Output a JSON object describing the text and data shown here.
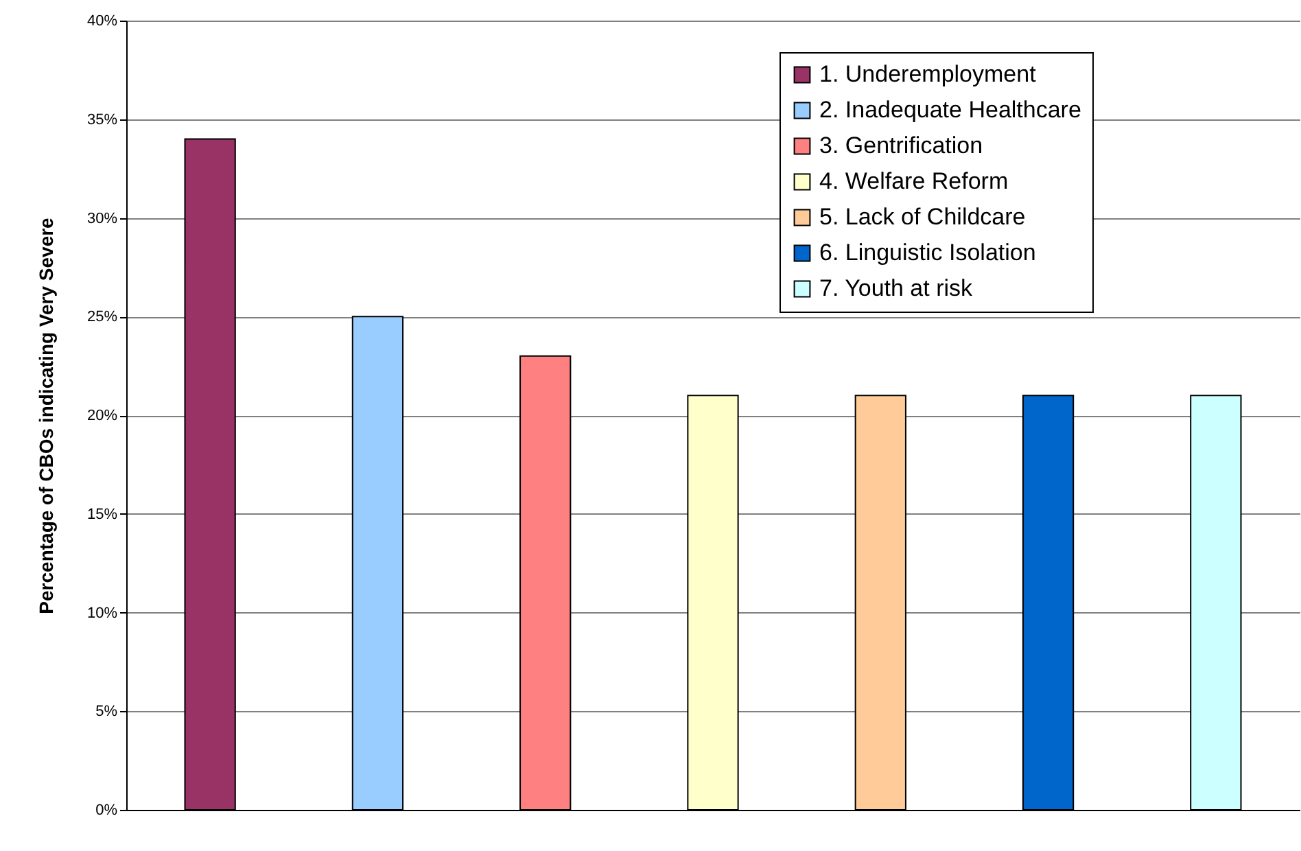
{
  "chart_data": {
    "type": "bar",
    "ylabel": "Percentage of CBOs indicating Very Severe",
    "categories": [
      null
    ],
    "series": [
      {
        "name": "1. Underemployment",
        "color": "#993366",
        "values": [
          34
        ]
      },
      {
        "name": "2. Inadequate Healthcare",
        "color": "#99ccff",
        "values": [
          25
        ]
      },
      {
        "name": "3. Gentrification",
        "color": "#ff8080",
        "values": [
          23
        ]
      },
      {
        "name": "4. Welfare Reform",
        "color": "#ffffcc",
        "values": [
          21
        ]
      },
      {
        "name": "5. Lack of Childcare",
        "color": "#ffcc99",
        "values": [
          21
        ]
      },
      {
        "name": "6. Linguistic Isolation",
        "color": "#0066cc",
        "values": [
          21
        ]
      },
      {
        "name": "7. Youth at risk",
        "color": "#ccffff",
        "values": [
          21
        ]
      }
    ],
    "ylim": [
      0,
      40
    ],
    "yticks": [
      {
        "value": 0,
        "label": "0%"
      },
      {
        "value": 5,
        "label": "5%"
      },
      {
        "value": 10,
        "label": "10%"
      },
      {
        "value": 15,
        "label": "15%"
      },
      {
        "value": 20,
        "label": "20%"
      },
      {
        "value": 25,
        "label": "25%"
      },
      {
        "value": 30,
        "label": "30%"
      },
      {
        "value": 35,
        "label": "35%"
      },
      {
        "value": 40,
        "label": "40%"
      }
    ],
    "grid": "y",
    "legend": "top right",
    "tick_labels": "y"
  }
}
